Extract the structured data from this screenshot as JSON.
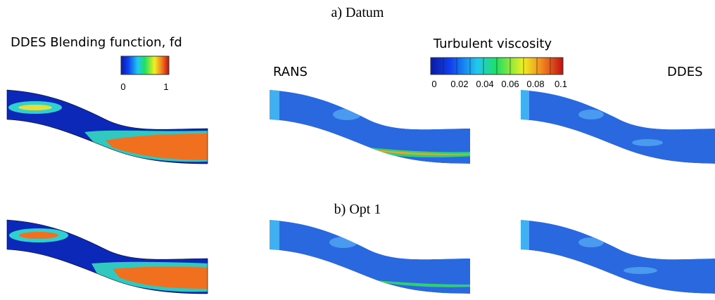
{
  "rows": [
    {
      "title": "a) Datum"
    },
    {
      "title": "b) Opt 1"
    }
  ],
  "blending_legend": {
    "title": "DDES Blending function, fd",
    "ticks": [
      0,
      1
    ]
  },
  "viscosity_legend": {
    "title": "Turbulent viscosity",
    "ticks": [
      0,
      0.02,
      0.04,
      0.06,
      0.08,
      0.1
    ]
  },
  "columns": [
    "RANS",
    "DDES"
  ]
}
